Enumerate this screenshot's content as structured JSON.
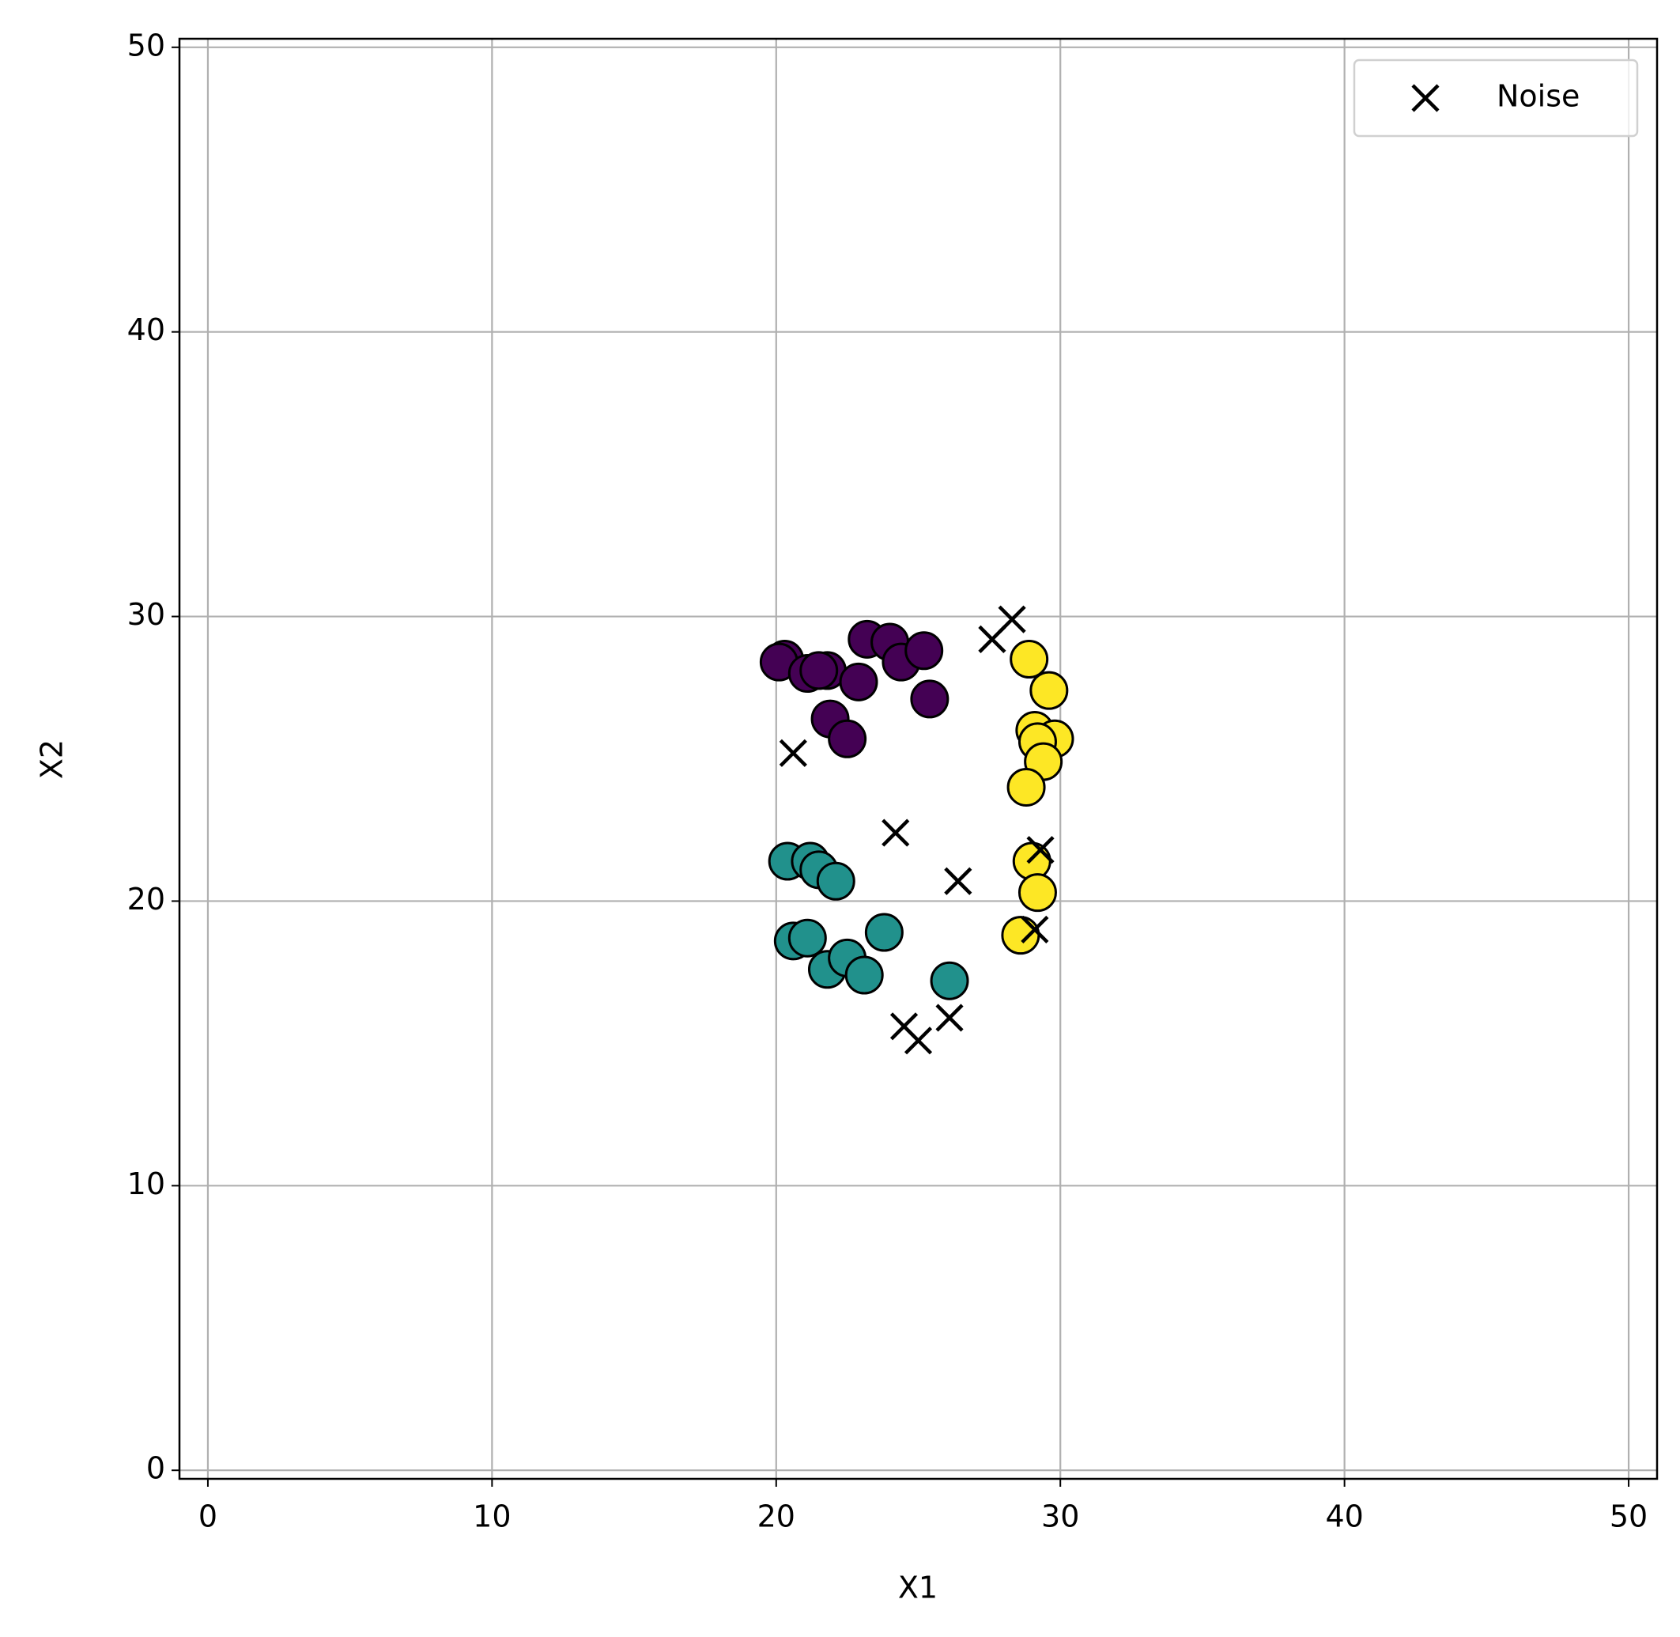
{
  "chart_data": {
    "type": "scatter",
    "x_label": "X1",
    "y_label": "X2",
    "xlim": [
      -1,
      51
    ],
    "ylim": [
      -0.3,
      50.3
    ],
    "xticks": [
      0,
      10,
      20,
      30,
      40,
      50
    ],
    "yticks": [
      0,
      10,
      20,
      30,
      40,
      50
    ],
    "grid": true,
    "legend": "upper right",
    "series": [
      {
        "color": "#440154",
        "marker": "circle",
        "x": [
          20.3,
          20.1,
          21.1,
          21.8,
          22.9,
          23.2,
          24.0,
          24.4,
          25.2,
          25.4,
          21.9,
          22.5,
          21.5
        ],
        "y": [
          28.5,
          28.4,
          28.0,
          28.1,
          27.7,
          29.2,
          29.1,
          28.4,
          28.8,
          27.1,
          26.4,
          25.7,
          28.1
        ]
      },
      {
        "color": "#21918c",
        "marker": "circle",
        "x": [
          20.4,
          21.2,
          21.5,
          22.1,
          20.6,
          21.1,
          21.8,
          22.5,
          23.1,
          23.8,
          26.1
        ],
        "y": [
          21.4,
          21.4,
          21.1,
          20.7,
          18.6,
          18.7,
          17.6,
          18.0,
          17.4,
          18.9,
          17.2
        ]
      },
      {
        "color": "#fde725",
        "marker": "circle",
        "x": [
          28.9,
          29.6,
          29.1,
          29.8,
          29.2,
          29.4,
          28.8,
          29.0,
          29.2,
          28.6
        ],
        "y": [
          28.5,
          27.4,
          26.0,
          25.7,
          25.6,
          24.9,
          24.0,
          21.4,
          20.3,
          18.8
        ]
      },
      {
        "name": "Noise",
        "color": "#000000",
        "marker": "x",
        "x": [
          28.3,
          27.6,
          20.6,
          24.2,
          26.4,
          29.3,
          29.1,
          24.5,
          25.0,
          26.1
        ],
        "y": [
          29.9,
          29.2,
          25.2,
          22.4,
          20.7,
          21.8,
          19.0,
          15.6,
          15.1,
          15.9
        ]
      }
    ]
  }
}
